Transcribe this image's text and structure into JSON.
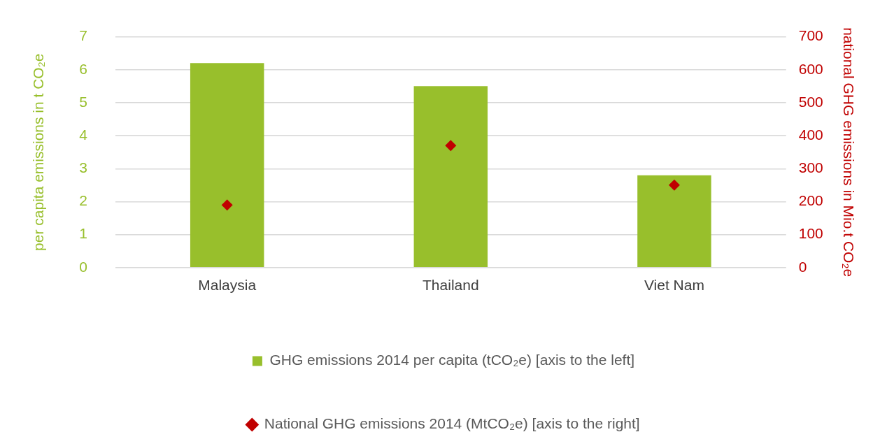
{
  "chart_data": {
    "type": "bar",
    "categories": [
      "Malaysia",
      "Thailand",
      "Viet Nam"
    ],
    "ylabel": "per capita emissions in t CO₂e",
    "y2label": "national GHG emissions in Mio.t CO₂e",
    "ylim": [
      0,
      7
    ],
    "yticks": [
      0,
      1,
      2,
      3,
      4,
      5,
      6,
      7
    ],
    "y2lim": [
      0,
      700
    ],
    "y2ticks": [
      0,
      100,
      200,
      300,
      400,
      500,
      600,
      700
    ],
    "grid": "y",
    "legend": "bottom",
    "marker": "diamond",
    "series": [
      {
        "name": "GHG emissions 2014 per capita (tCO₂e) [axis to the left]",
        "type": "bar",
        "color": "#98bf2c",
        "values": [
          6.2,
          5.5,
          2.8
        ]
      },
      {
        "name": "National GHG emissions 2014 (MtCO₂e) [axis to the right]",
        "type": "scatter",
        "axis": "y2",
        "color": "#c00000",
        "x": [
          "Malaysia",
          "Thailand",
          "Viet Nam"
        ],
        "values": [
          190,
          370,
          250
        ]
      }
    ]
  }
}
